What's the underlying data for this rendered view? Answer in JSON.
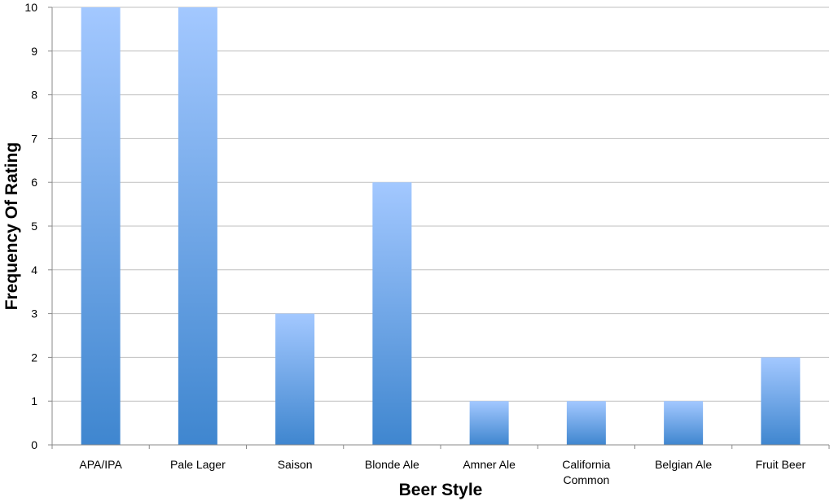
{
  "chart_data": {
    "type": "bar",
    "categories": [
      [
        "APA/IPA"
      ],
      [
        "Pale Lager"
      ],
      [
        "Saison"
      ],
      [
        "Blonde Ale"
      ],
      [
        "Amner Ale"
      ],
      [
        "California",
        "Common"
      ],
      [
        "Belgian Ale"
      ],
      [
        "Fruit Beer"
      ]
    ],
    "values": [
      10,
      10,
      3,
      6,
      1,
      1,
      1,
      2
    ],
    "xlabel": "Beer Style",
    "ylabel": "Frequency Of Rating",
    "ylim": [
      0,
      10
    ],
    "yticks": [
      0,
      1,
      2,
      3,
      4,
      5,
      6,
      7,
      8,
      9,
      10
    ],
    "grid": true,
    "legend": "none",
    "colors": {
      "bar_top": "#a3c8ff",
      "bar_bottom": "#3f86cf",
      "grid": "#bfbfbf",
      "axis": "#888888"
    }
  }
}
